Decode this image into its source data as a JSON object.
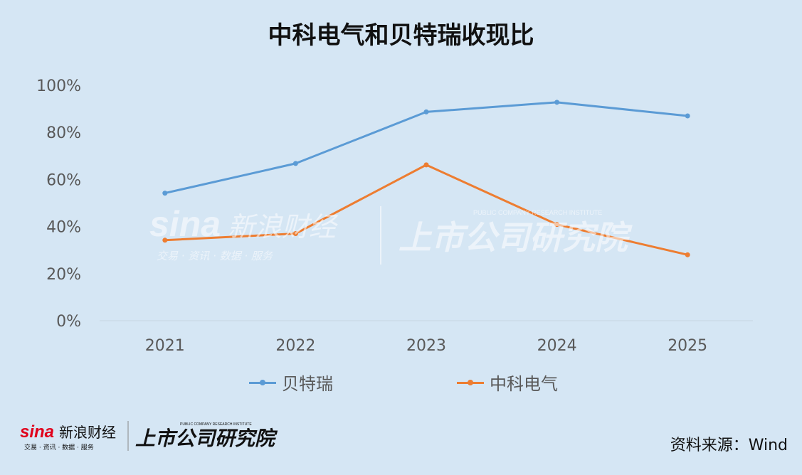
{
  "title": "中科电气和贝特瑞收现比",
  "source": "资料来源：Wind",
  "watermark": {
    "sina": "sina",
    "brand": "新浪财经",
    "tagline": "交易 · 资讯 · 数据 · 服务",
    "institute": "上市公司研究院",
    "institute_en": "PUBLIC COMPANY RESEARCH INSTITUTE"
  },
  "chart_data": {
    "type": "line",
    "title": "中科电气和贝特瑞收现比",
    "categories": [
      "2021",
      "2022",
      "2023",
      "2024",
      "2025"
    ],
    "ylim": [
      0,
      100
    ],
    "yticks": [
      0,
      20,
      40,
      60,
      80,
      100
    ],
    "ytick_labels": [
      "0%",
      "20%",
      "40%",
      "60%",
      "80%",
      "100%"
    ],
    "grid": false,
    "legend": "bottom",
    "series": [
      {
        "name": "贝特瑞",
        "color": "#5b9bd5",
        "values": [
          54.2,
          66.8,
          88.7,
          92.8,
          87.0
        ]
      },
      {
        "name": "中科电气",
        "color": "#ed7d31",
        "values": [
          34.2,
          37.0,
          66.2,
          40.9,
          28.0
        ]
      }
    ]
  }
}
